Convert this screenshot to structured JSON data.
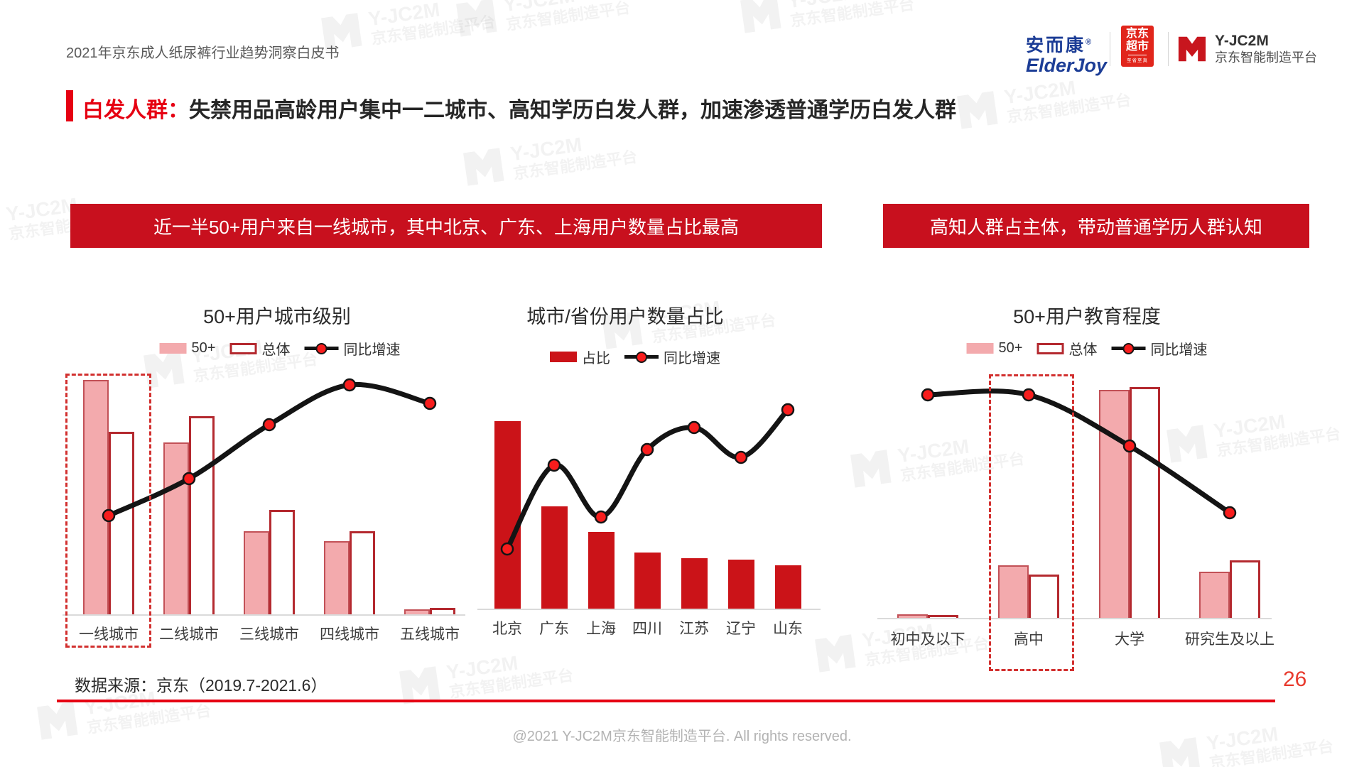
{
  "page": {
    "header_title": "2021年京东成人纸尿裤行业趋势洞察白皮书",
    "page_number": "26",
    "source_note": "数据来源：京东（2019.7-2021.6）",
    "copyright": "@2021 Y-JC2M京东智能制造平台. All rights reserved."
  },
  "logos": {
    "elderjoy_cn": "安而康",
    "elderjoy_reg": "®",
    "elderjoy_en": "ElderJoy",
    "jd_market_line1": "京东",
    "jd_market_line2": "超市",
    "jd_market_sub": "至省至真",
    "yjc2m_name": "Y-JC2M",
    "yjc2m_sub": "京东智能制造平台"
  },
  "title": {
    "highlight": "白发人群：",
    "text": "失禁用品高龄用户集中一二城市、高知学历白发人群，加速渗透普通学历白发人群"
  },
  "banners": [
    {
      "text": "近一半50+用户来自一线城市，其中北京、广东、上海用户数量占比最高"
    },
    {
      "text": "高知人群占主体，带动普通学历人群认知"
    }
  ],
  "watermark": {
    "line1": "Y-JC2M",
    "line2": "京东智能制造平台"
  },
  "colors": {
    "accent_red": "#E60012",
    "banner_bg": "#C8101E",
    "bar_solid": "#CB1318",
    "bar_pink": "#F3AAAD",
    "bar_pink_border": "#C25157",
    "bar_outline_border": "#B4292F",
    "trend_line": "#141414",
    "trend_dot": "#F81D1D",
    "highlight_dash": "#D2302F",
    "jd_logo_red": "#E1251B",
    "elderjoy_blue": "#1C3D96"
  },
  "chart_data": [
    {
      "type": "bar+line",
      "title": "50+用户城市级别",
      "categories": [
        "一线城市",
        "二线城市",
        "三线城市",
        "四线城市",
        "五线城市"
      ],
      "series": [
        {
          "name": "50+",
          "type": "bar",
          "style": "pink",
          "values": [
            45,
            33,
            16,
            14,
            1
          ]
        },
        {
          "name": "总体",
          "type": "bar",
          "style": "outline",
          "values": [
            35,
            38,
            20,
            16,
            1.2
          ]
        },
        {
          "name": "同比增速",
          "type": "line",
          "axis": "secondary",
          "values": [
            42,
            58,
            81,
            98,
            90
          ]
        }
      ],
      "highlight_category": "一线城市",
      "values_estimated": true,
      "legend_position": "top",
      "grid": false
    },
    {
      "type": "bar+line",
      "title": "城市/省份用户数量占比",
      "categories": [
        "北京",
        "广东",
        "上海",
        "四川",
        "江苏",
        "辽宁",
        "山东"
      ],
      "series": [
        {
          "name": "占比",
          "type": "bar",
          "style": "solid",
          "values": [
            13,
            7.1,
            5.3,
            3.9,
            3.5,
            3.4,
            3.0
          ]
        },
        {
          "name": "同比增速",
          "type": "line",
          "axis": "secondary",
          "values": [
            30,
            72,
            46,
            80,
            91,
            76,
            100
          ]
        }
      ],
      "values_estimated": true,
      "legend_position": "top",
      "grid": false
    },
    {
      "type": "bar+line",
      "title": "50+用户教育程度",
      "categories": [
        "初中及以下",
        "高中",
        "大学",
        "研究生及以上"
      ],
      "series": [
        {
          "name": "50+",
          "type": "bar",
          "style": "pink",
          "values": [
            0.6,
            9.5,
            41,
            8.3
          ]
        },
        {
          "name": "总体",
          "type": "bar",
          "style": "outline",
          "values": [
            0.5,
            7.8,
            41.5,
            10.4
          ]
        },
        {
          "name": "同比增速",
          "type": "line",
          "axis": "secondary",
          "values": [
            100,
            100,
            77,
            47
          ]
        }
      ],
      "highlight_category": "高中",
      "values_estimated": true,
      "legend_position": "top",
      "grid": false
    }
  ]
}
